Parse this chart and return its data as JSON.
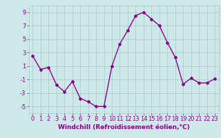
{
  "x": [
    0,
    1,
    2,
    3,
    4,
    5,
    6,
    7,
    8,
    9,
    10,
    11,
    12,
    13,
    14,
    15,
    16,
    17,
    18,
    19,
    20,
    21,
    22,
    23
  ],
  "y": [
    2.5,
    0.5,
    0.8,
    -1.8,
    -2.8,
    -1.3,
    -3.8,
    -4.3,
    -5.0,
    -5.0,
    1.0,
    4.3,
    6.3,
    8.5,
    9.0,
    8.0,
    7.0,
    4.5,
    2.3,
    -1.7,
    -0.8,
    -1.5,
    -1.5,
    -0.9
  ],
  "line_color": "#8B008B",
  "marker": "D",
  "marker_size": 2,
  "bg_color": "#cce8e8",
  "grid_color": "#aac8c8",
  "xlabel": "Windchill (Refroidissement éolien,°C)",
  "ylim": [
    -6,
    10
  ],
  "xlim": [
    -0.5,
    23.5
  ],
  "yticks": [
    -5,
    -3,
    -1,
    1,
    3,
    5,
    7,
    9
  ],
  "xticks": [
    0,
    1,
    2,
    3,
    4,
    5,
    6,
    7,
    8,
    9,
    10,
    11,
    12,
    13,
    14,
    15,
    16,
    17,
    18,
    19,
    20,
    21,
    22,
    23
  ],
  "axis_label_color": "#8B008B",
  "tick_label_color": "#8B008B",
  "xlabel_fontsize": 6.5,
  "tick_fontsize": 6,
  "linewidth": 1.0
}
